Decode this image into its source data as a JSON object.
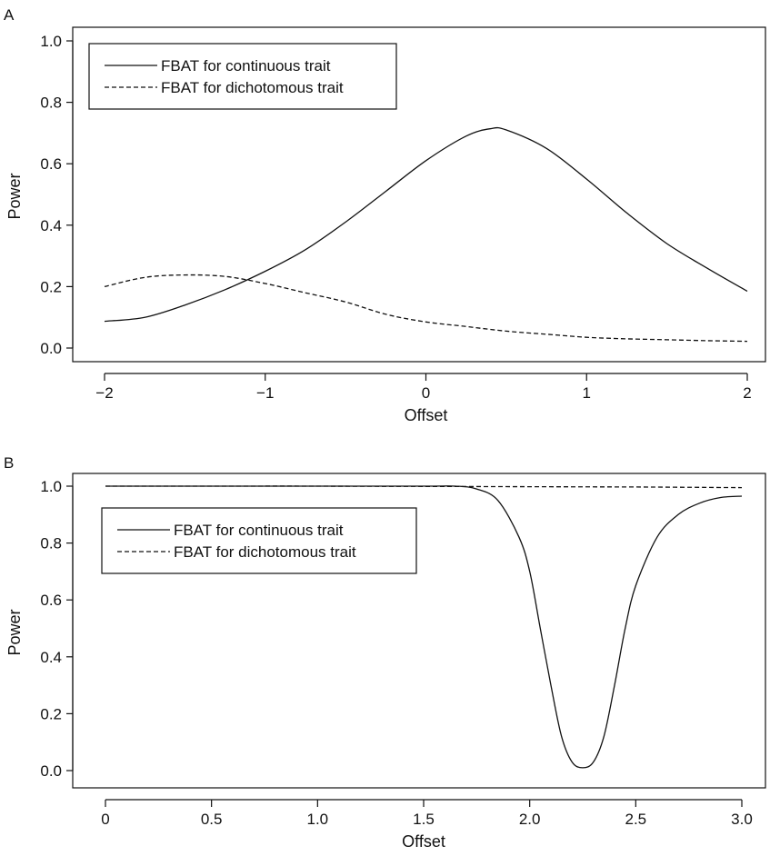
{
  "chart_data": [
    {
      "type": "line",
      "panel_label": "A",
      "xlabel": "Offset",
      "ylabel": "Power",
      "xlim": [
        -2,
        2
      ],
      "ylim": [
        0,
        1
      ],
      "x_ticks": [
        -2,
        -1,
        0,
        1,
        2
      ],
      "x_tick_labels": [
        "−2",
        "−1",
        "0",
        "1",
        "2"
      ],
      "y_ticks": [
        0,
        0.2,
        0.4,
        0.6,
        0.8,
        1.0
      ],
      "y_tick_labels": [
        "0.0",
        "0.2",
        "0.4",
        "0.6",
        "0.8",
        "1.0"
      ],
      "legend_position": "top-left",
      "series": [
        {
          "name": "FBAT for continuous trait",
          "style": "solid",
          "x": [
            -2.0,
            -1.75,
            -1.5,
            -1.25,
            -1.0,
            -0.75,
            -0.5,
            -0.25,
            0.0,
            0.25,
            0.4,
            0.5,
            0.75,
            1.0,
            1.25,
            1.5,
            1.75,
            2.0
          ],
          "y": [
            0.087,
            0.1,
            0.14,
            0.19,
            0.25,
            0.32,
            0.41,
            0.51,
            0.61,
            0.69,
            0.714,
            0.71,
            0.65,
            0.55,
            0.44,
            0.34,
            0.26,
            0.185
          ]
        },
        {
          "name": "FBAT for dichotomous trait",
          "style": "dashed",
          "x": [
            -2.0,
            -1.75,
            -1.5,
            -1.25,
            -1.0,
            -0.75,
            -0.5,
            -0.25,
            0.0,
            0.25,
            0.5,
            0.75,
            1.0,
            1.25,
            1.5,
            1.75,
            2.0
          ],
          "y": [
            0.2,
            0.23,
            0.238,
            0.233,
            0.21,
            0.18,
            0.15,
            0.11,
            0.085,
            0.07,
            0.055,
            0.045,
            0.035,
            0.03,
            0.027,
            0.024,
            0.022
          ]
        }
      ]
    },
    {
      "type": "line",
      "panel_label": "B",
      "xlabel": "Offset",
      "ylabel": "Power",
      "xlim": [
        0,
        3
      ],
      "ylim": [
        0,
        1
      ],
      "x_ticks": [
        0,
        0.5,
        1.0,
        1.5,
        2.0,
        2.5,
        3.0
      ],
      "x_tick_labels": [
        "0",
        "0.5",
        "1.0",
        "1.5",
        "2.0",
        "2.5",
        "3.0"
      ],
      "y_ticks": [
        0,
        0.2,
        0.4,
        0.6,
        0.8,
        1.0
      ],
      "y_tick_labels": [
        "0.0",
        "0.2",
        "0.4",
        "0.6",
        "0.8",
        "1.0"
      ],
      "legend_position": "upper-left",
      "series": [
        {
          "name": "FBAT for continuous trait",
          "style": "solid",
          "x": [
            0.0,
            0.5,
            1.0,
            1.5,
            1.65,
            1.75,
            1.85,
            1.95,
            2.0,
            2.05,
            2.1,
            2.15,
            2.2,
            2.25,
            2.3,
            2.35,
            2.4,
            2.45,
            2.5,
            2.6,
            2.7,
            2.8,
            2.9,
            3.0
          ],
          "y": [
            1.0,
            1.0,
            1.0,
            1.0,
            1.0,
            0.99,
            0.95,
            0.82,
            0.7,
            0.5,
            0.3,
            0.12,
            0.03,
            0.01,
            0.03,
            0.12,
            0.3,
            0.5,
            0.65,
            0.82,
            0.9,
            0.94,
            0.96,
            0.965
          ]
        },
        {
          "name": "FBAT for dichotomous trait",
          "style": "dashed",
          "x": [
            0.0,
            0.5,
            1.0,
            1.5,
            2.0,
            2.5,
            3.0
          ],
          "y": [
            1.0,
            1.0,
            1.0,
            0.999,
            0.998,
            0.997,
            0.995
          ]
        }
      ]
    }
  ]
}
